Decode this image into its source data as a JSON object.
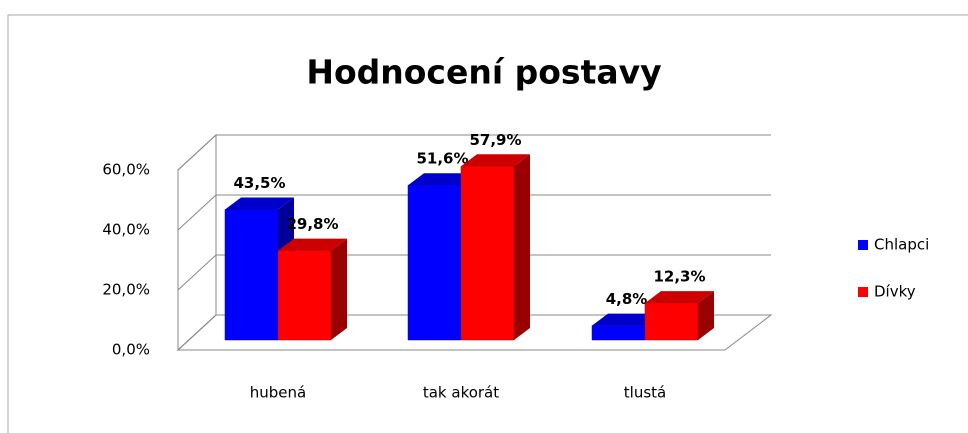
{
  "chart_data": {
    "type": "bar3d",
    "title": "Hodnocení postavy",
    "categories": [
      "hubená",
      "tak akorát",
      "tlustá"
    ],
    "series": [
      {
        "name": "Chlapci",
        "color": "#0000ff",
        "values": [
          43.5,
          51.6,
          4.8
        ],
        "value_labels": [
          "43,5%",
          "51,6%",
          "4,8%"
        ]
      },
      {
        "name": "Dívky",
        "color": "#ff0000",
        "values": [
          29.8,
          57.9,
          12.3
        ],
        "value_labels": [
          "29,8%",
          "57,9%",
          "12,3%"
        ]
      }
    ],
    "ylim": [
      0,
      60
    ],
    "yticks": [
      {
        "value": 0,
        "label": "0,0%"
      },
      {
        "value": 20,
        "label": "20,0%"
      },
      {
        "value": 40,
        "label": "40,0%"
      },
      {
        "value": 60,
        "label": "60,0%"
      }
    ],
    "grid": true,
    "legend": "right"
  }
}
